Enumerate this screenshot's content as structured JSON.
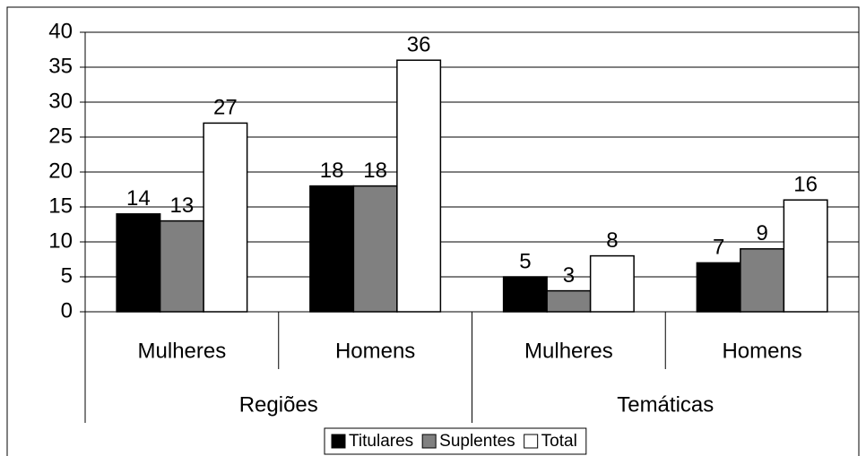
{
  "chart_data": {
    "type": "bar",
    "categories": [
      "Mulheres",
      "Homens",
      "Mulheres",
      "Homens"
    ],
    "groups": [
      "Regiões",
      "Temáticas"
    ],
    "series": [
      {
        "name": "Titulares",
        "color": "#000000",
        "values": [
          14,
          18,
          5,
          7
        ]
      },
      {
        "name": "Suplentes",
        "color": "#808080",
        "values": [
          13,
          18,
          3,
          9
        ]
      },
      {
        "name": "Total",
        "color": "#ffffff",
        "values": [
          27,
          36,
          8,
          16
        ]
      }
    ],
    "ylim": [
      0,
      40
    ],
    "yticks": [
      0,
      5,
      10,
      15,
      20,
      25,
      30,
      35,
      40
    ],
    "grid": true,
    "legend": "bottom"
  }
}
